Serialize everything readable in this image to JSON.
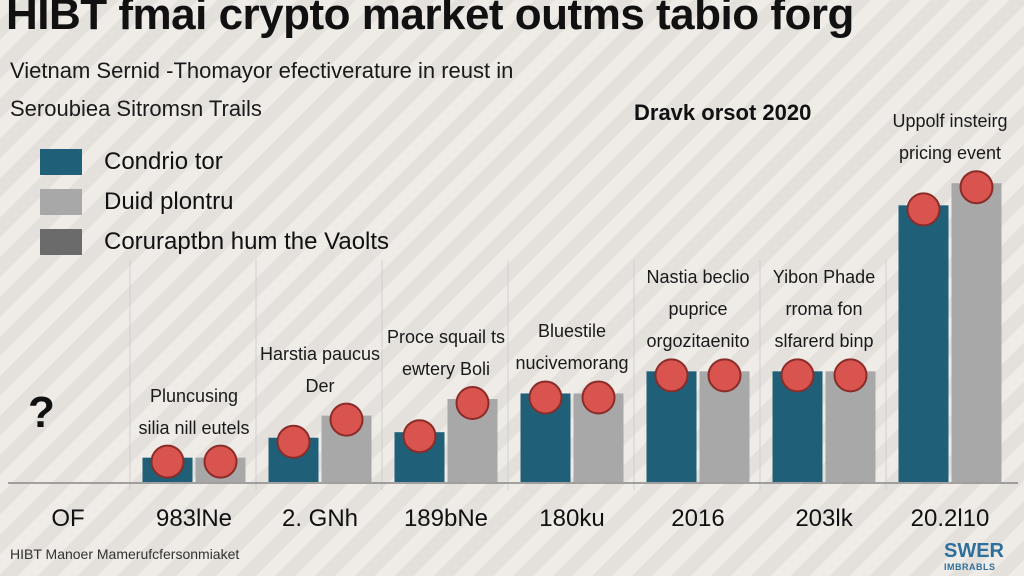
{
  "colors": {
    "series1": "#1f5f78",
    "series2": "#a8a8a8",
    "series3": "#6b6b6b",
    "coin": "#d9534f"
  },
  "chart_data": {
    "type": "bar",
    "title": "HIBT fmai crypto market outms tabio forg",
    "subtitle_lines": [
      "Vietnam Sernid -Thomayor efectiverature in reust in",
      "Seroubiea Sitromsn Trails"
    ],
    "legend": [
      "Condrio tor",
      "Duid plontru",
      "Coruraptbn hum the Vaolts"
    ],
    "series_label": "Dravk orsot 2020",
    "categories": [
      "OF",
      "983lNe",
      "2. GNh",
      "189bNe",
      "180ku",
      "2016",
      "203lk",
      "20.2l10"
    ],
    "series": [
      {
        "name": "Condrio tor",
        "values": [
          null,
          22,
          40,
          45,
          80,
          100,
          100,
          250
        ]
      },
      {
        "name": "Duid plontru",
        "values": [
          null,
          22,
          60,
          75,
          80,
          100,
          100,
          270
        ]
      }
    ],
    "annotations": [
      "",
      "Pluncusing silia nill eutels",
      "Harstia paucus Der",
      "Proce squail ts ewtery Boli",
      "Bluestile nucivemorang",
      "Nastia beclio puprice orgozitaenito",
      "Yibon Phade rroma fon slfarerd binp",
      "Uppolf insteirg pricing event"
    ],
    "ylim": [
      0,
      300
    ]
  },
  "footer": "HIBT Manoer Mamerufcfersonmiaket",
  "brand": {
    "main": "SWER",
    "sub": "IMBRABLS"
  },
  "question_mark": "?"
}
